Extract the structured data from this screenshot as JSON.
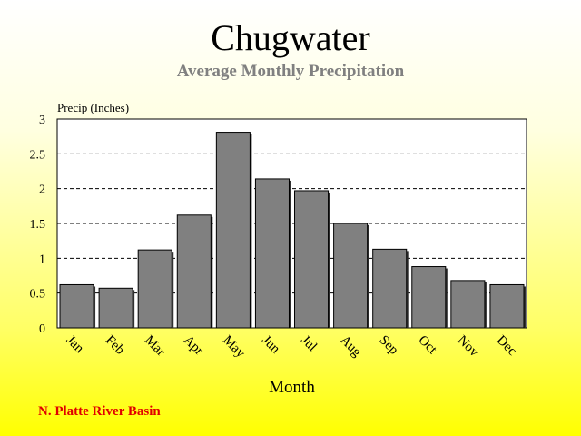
{
  "header": {
    "title": "Chugwater",
    "subtitle": "Average Monthly Precipitation"
  },
  "footer": {
    "basin_label": "N. Platte River Basin"
  },
  "colors": {
    "title": "#000000",
    "subtitle": "#808080",
    "basin": "#e00000",
    "bar_fill": "#808080",
    "plot_bg": "#ffffff"
  },
  "chart_data": {
    "type": "bar",
    "categories": [
      "Jan",
      "Feb",
      "Mar",
      "Apr",
      "May",
      "Jun",
      "Jul",
      "Aug",
      "Sep",
      "Oct",
      "Nov",
      "Dec"
    ],
    "values": [
      0.62,
      0.57,
      1.12,
      1.62,
      2.81,
      2.14,
      1.97,
      1.5,
      1.13,
      0.88,
      0.68,
      0.62
    ],
    "ylabel": "Precip (Inches)",
    "xlabel": "Month",
    "ylim": [
      0,
      3
    ],
    "yticks": [
      "0",
      "0.5",
      "1",
      "1.5",
      "2",
      "2.5",
      "3"
    ],
    "grid": "dashed horizontal"
  }
}
